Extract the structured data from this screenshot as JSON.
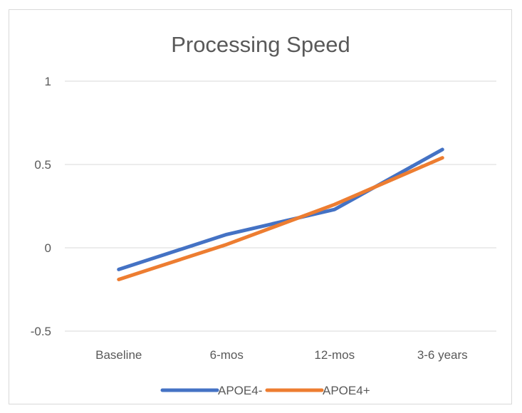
{
  "chart_data": {
    "type": "line",
    "title": "Processing Speed",
    "xlabel": "",
    "ylabel": "",
    "categories": [
      "Baseline",
      "6-mos",
      "12-mos",
      "3-6 years"
    ],
    "yticks": [
      "1",
      "0.5",
      "0",
      "-0.5"
    ],
    "ytick_values": [
      1,
      0.5,
      0,
      -0.5
    ],
    "ylim": [
      -0.5,
      1
    ],
    "grid": true,
    "legend_position": "bottom",
    "series": [
      {
        "name": "APOE4-",
        "color": "#4472C4",
        "values": [
          -0.13,
          0.08,
          0.23,
          0.59
        ]
      },
      {
        "name": "APOE4+",
        "color": "#ED7D31",
        "values": [
          -0.19,
          0.02,
          0.26,
          0.54
        ]
      }
    ]
  }
}
